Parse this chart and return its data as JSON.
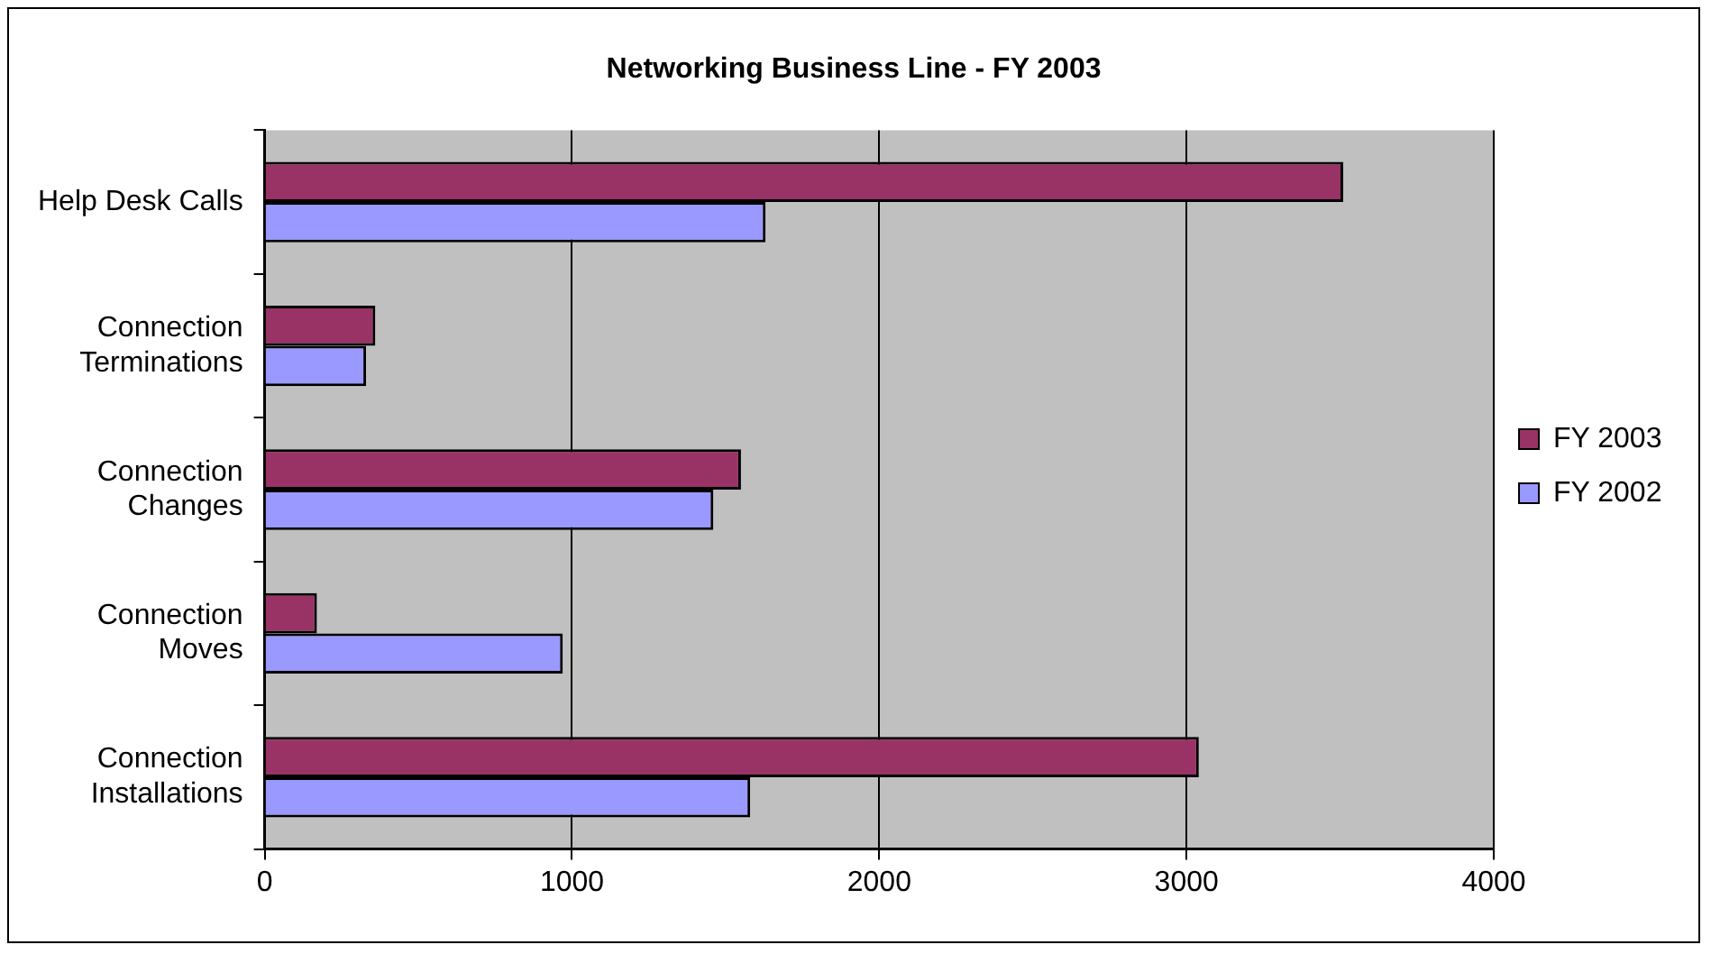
{
  "chart_data": {
    "type": "bar",
    "orientation": "horizontal",
    "title": "Networking Business Line - FY 2003",
    "categories": [
      "Help Desk Calls",
      "Connection Terminations",
      "Connection Changes",
      "Connection Moves",
      "Connection Installations"
    ],
    "series": [
      {
        "name": "FY 2003",
        "color": "#993366",
        "values": [
          3510,
          360,
          1550,
          170,
          3040
        ]
      },
      {
        "name": "FY 2002",
        "color": "#9999ff",
        "values": [
          1630,
          330,
          1460,
          970,
          1580
        ]
      }
    ],
    "xlim": [
      0,
      4000
    ],
    "xticks": [
      0,
      1000,
      2000,
      3000,
      4000
    ],
    "grid": "x",
    "legend": "right"
  }
}
